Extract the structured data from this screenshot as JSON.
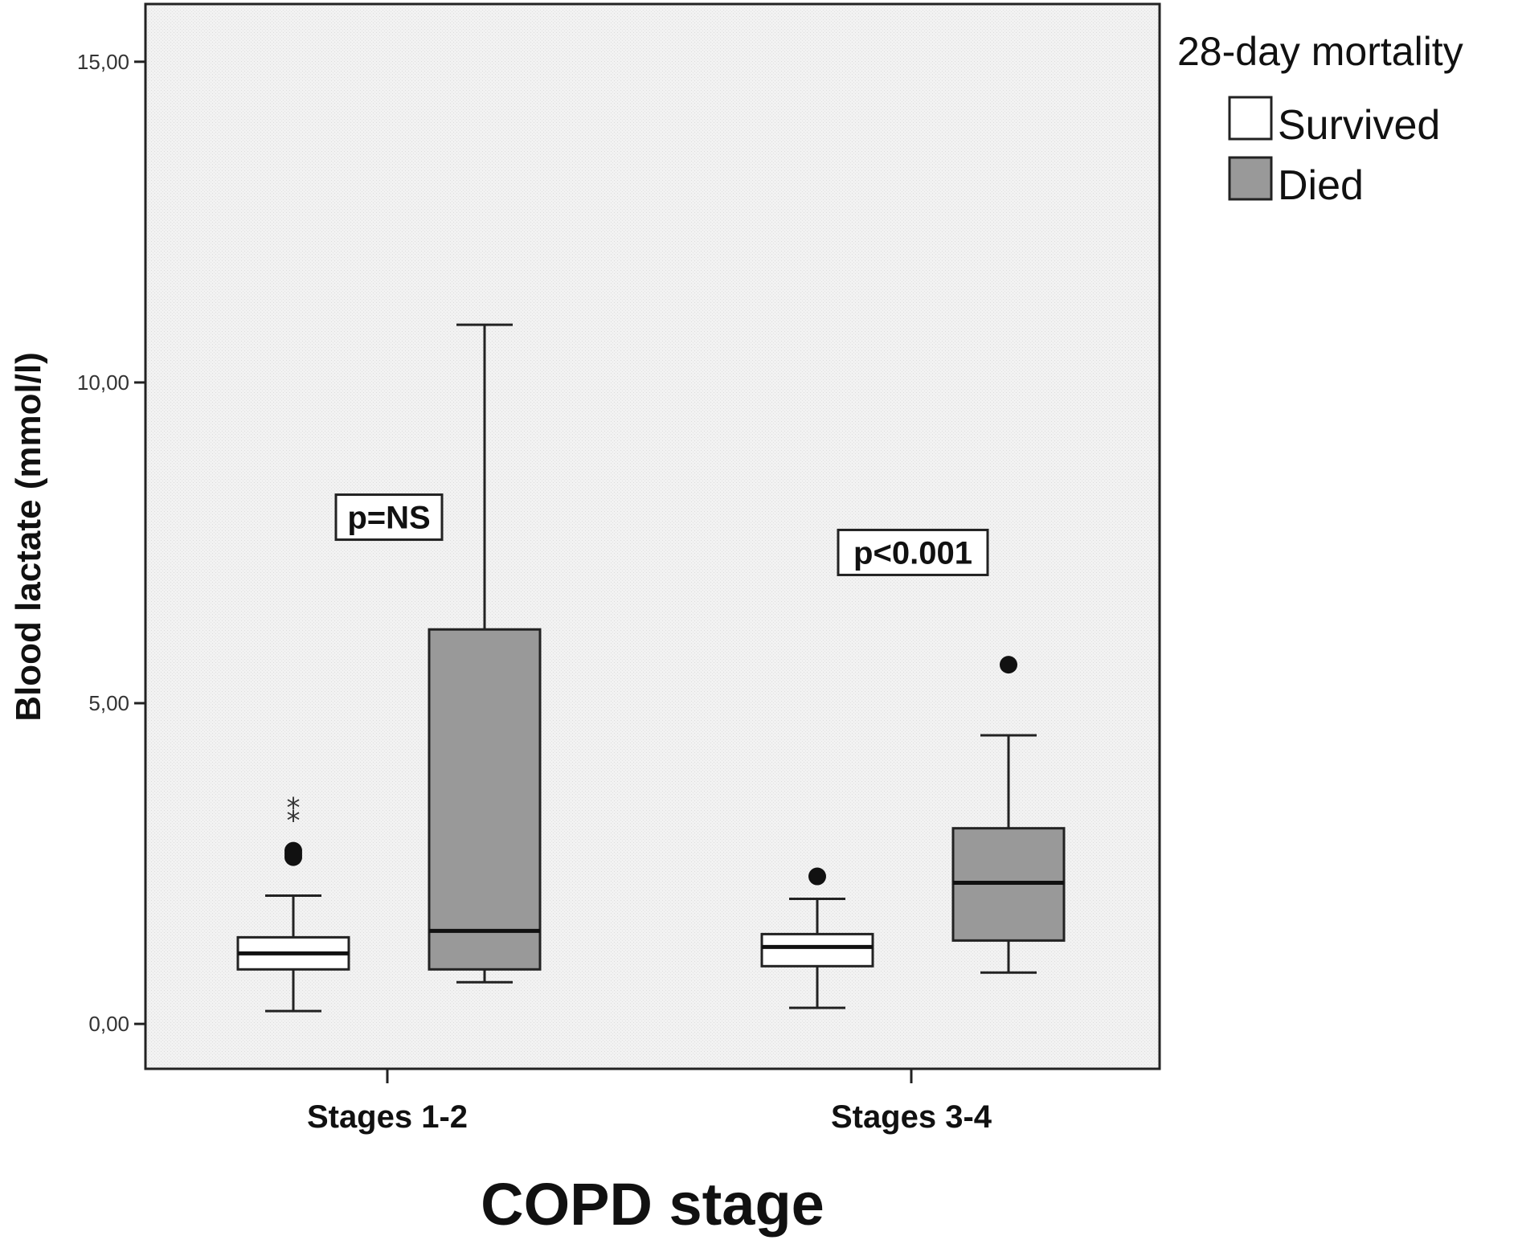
{
  "chart_data": {
    "type": "boxplot",
    "xlabel": "COPD stage",
    "ylabel": "Blood lactate (mmol/l)",
    "ylim": [
      -0.7,
      15.9
    ],
    "yticks": [
      0,
      5,
      10,
      15
    ],
    "ytick_labels": [
      "0,00",
      "5,00",
      "10,00",
      "15,00"
    ],
    "categories": [
      "Stages 1-2",
      "Stages 3-4"
    ],
    "legend": {
      "title": "28-day mortality",
      "position": "right",
      "entries": [
        {
          "label": "Survived",
          "color": "#ffffff"
        },
        {
          "label": "Died",
          "color": "#999999"
        }
      ]
    },
    "series": [
      {
        "name": "Survived",
        "color": "#ffffff",
        "boxes": [
          {
            "category": "Stages 1-2",
            "whisker_low": 0.2,
            "q1": 0.85,
            "median": 1.1,
            "q3": 1.35,
            "whisker_high": 2.0,
            "outliers_circle": [
              2.6,
              2.7,
              2.65
            ],
            "outliers_star": [
              3.2,
              3.4
            ]
          },
          {
            "category": "Stages 3-4",
            "whisker_low": 0.25,
            "q1": 0.9,
            "median": 1.2,
            "q3": 1.4,
            "whisker_high": 1.95,
            "outliers_circle": [
              2.3
            ],
            "outliers_star": []
          }
        ]
      },
      {
        "name": "Died",
        "color": "#999999",
        "boxes": [
          {
            "category": "Stages 1-2",
            "whisker_low": 0.65,
            "q1": 0.85,
            "median": 1.45,
            "q3": 6.15,
            "whisker_high": 10.9,
            "outliers_circle": [],
            "outliers_star": []
          },
          {
            "category": "Stages 3-4",
            "whisker_low": 0.8,
            "q1": 1.3,
            "median": 2.2,
            "q3": 3.05,
            "whisker_high": 4.5,
            "outliers_circle": [
              5.6
            ],
            "outliers_star": []
          }
        ]
      }
    ],
    "annotations": [
      {
        "category": "Stages 1-2",
        "text": "p=NS",
        "y": 7.9
      },
      {
        "category": "Stages 3-4",
        "text": "p<0.001",
        "y": 7.35
      }
    ]
  }
}
